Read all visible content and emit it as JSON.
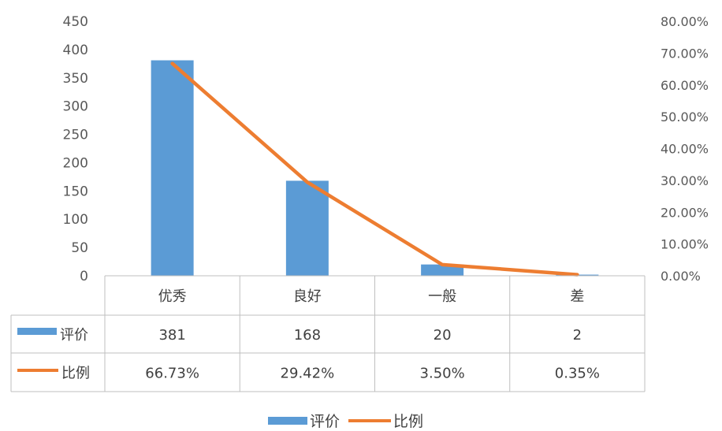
{
  "chart_data": {
    "type": "bar",
    "categories": [
      "优秀",
      "良好",
      "一般",
      "差"
    ],
    "series": [
      {
        "name": "评价",
        "kind": "bar",
        "axis": "left",
        "color": "#5b9bd5",
        "values": [
          381,
          168,
          20,
          2
        ],
        "labels": [
          "381",
          "168",
          "20",
          "2"
        ]
      },
      {
        "name": "比例",
        "kind": "line",
        "axis": "right",
        "color": "#ed7d31",
        "values": [
          66.73,
          29.42,
          3.5,
          0.35
        ],
        "labels": [
          "66.73%",
          "29.42%",
          "3.50%",
          "0.35%"
        ]
      }
    ],
    "y_left": {
      "min": 0,
      "max": 450,
      "step": 50,
      "ticks": [
        "0",
        "50",
        "100",
        "150",
        "200",
        "250",
        "300",
        "350",
        "400",
        "450"
      ]
    },
    "y_right": {
      "min": 0,
      "max": 80,
      "step": 10,
      "ticks": [
        "0.00%",
        "10.00%",
        "20.00%",
        "30.00%",
        "40.00%",
        "50.00%",
        "60.00%",
        "70.00%",
        "80.00%"
      ]
    },
    "grid": false,
    "data_table": true,
    "legend": {
      "position": "bottom",
      "items": [
        "评价",
        "比例"
      ]
    }
  }
}
